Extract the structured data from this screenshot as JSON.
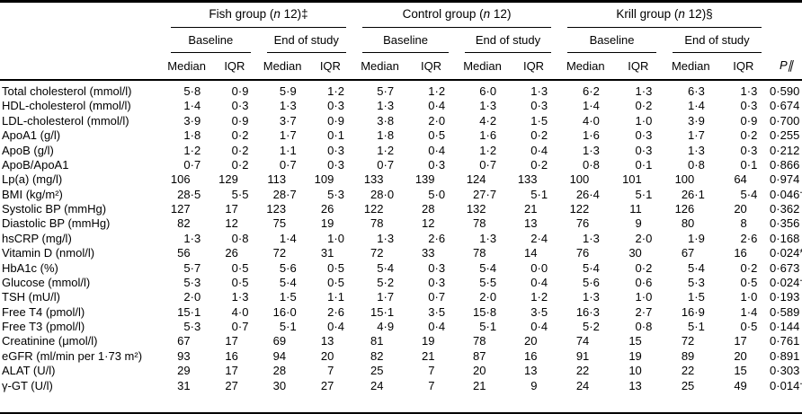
{
  "colors": {
    "background": "#ffffff",
    "text": "#000000",
    "rule": "#000000"
  },
  "table": {
    "groups": [
      {
        "label": "Fish group (n 12)‡",
        "subgroups": [
          "Baseline",
          "End of study"
        ]
      },
      {
        "label": "Control group (n 12)",
        "subgroups": [
          "Baseline",
          "End of study"
        ]
      },
      {
        "label": "Krill group (n 12)§",
        "subgroups": [
          "Baseline",
          "End of study"
        ]
      }
    ],
    "stat_headers": [
      "Median",
      "IQR"
    ],
    "p_header": "P∥",
    "rows": [
      {
        "label": "Total cholesterol (mmol/l)",
        "values": [
          "5·8",
          "0·9",
          "5·9",
          "1·2",
          "5·7",
          "1·2",
          "6·0",
          "1·3",
          "6·2",
          "1·3",
          "6·3",
          "1·3"
        ],
        "p": "0·590"
      },
      {
        "label": "HDL-cholesterol (mmol/l)",
        "values": [
          "1·4",
          "0·3",
          "1·3",
          "0·3",
          "1·3",
          "0·4",
          "1·3",
          "0·3",
          "1·4",
          "0·2",
          "1·4",
          "0·3"
        ],
        "p": "0·674"
      },
      {
        "label": "LDL-cholesterol (mmol/l)",
        "values": [
          "3·9",
          "0·9",
          "3·7",
          "0·9",
          "3·8",
          "2·0",
          "4·2",
          "1·5",
          "4·0",
          "1·0",
          "3·9",
          "0·9"
        ],
        "p": "0·700"
      },
      {
        "label": "ApoA1 (g/l)",
        "values": [
          "1·8",
          "0·2",
          "1·7",
          "0·1",
          "1·8",
          "0·5",
          "1·6",
          "0·2",
          "1·6",
          "0·3",
          "1·7",
          "0·2"
        ],
        "p": "0·255"
      },
      {
        "label": "ApoB (g/l)",
        "values": [
          "1·2",
          "0·2",
          "1·1",
          "0·3",
          "1·2",
          "0·4",
          "1·2",
          "0·4",
          "1·3",
          "0·3",
          "1·3",
          "0·3"
        ],
        "p": "0·212"
      },
      {
        "label": "ApoB/ApoA1",
        "values": [
          "0·7",
          "0·2",
          "0·7",
          "0·3",
          "0·7",
          "0·3",
          "0·7",
          "0·2",
          "0·8",
          "0·1",
          "0·8",
          "0·1"
        ],
        "p": "0·866"
      },
      {
        "label": "Lp(a) (mg/l)",
        "values": [
          "106",
          "129",
          "113",
          "109",
          "133",
          "139",
          "124",
          "133",
          "100",
          "101",
          "100",
          "64"
        ],
        "p": "0·974"
      },
      {
        "label": "BMI (kg/m²)",
        "values": [
          "28·5",
          "5·5",
          "28·7",
          "5·3",
          "28·0",
          "5·0",
          "27·7",
          "5·1",
          "26·4",
          "5·1",
          "26·1",
          "5·4"
        ],
        "p": "0·046†"
      },
      {
        "label": "Systolic BP (mmHg)",
        "values": [
          "127",
          "17",
          "123",
          "26",
          "122",
          "28",
          "132",
          "21",
          "122",
          "11",
          "126",
          "20"
        ],
        "p": "0·362"
      },
      {
        "label": "Diastolic BP (mmHg)",
        "values": [
          "82",
          "12",
          "75",
          "19",
          "78",
          "12",
          "78",
          "13",
          "76",
          "9",
          "80",
          "8"
        ],
        "p": "0·356"
      },
      {
        "label": "hsCRP (mg/l)",
        "values": [
          "1·3",
          "0·8",
          "1·4",
          "1·0",
          "1·3",
          "2·6",
          "1·3",
          "2·4",
          "1·3",
          "2·0",
          "1·9",
          "2·6"
        ],
        "p": "0·168"
      },
      {
        "label": "Vitamin D (nmol/l)",
        "values": [
          "56",
          "26",
          "72",
          "31",
          "72",
          "33",
          "78",
          "14",
          "76",
          "30",
          "67",
          "16"
        ],
        "p": "0·024*"
      },
      {
        "label": "HbA1c (%)",
        "values": [
          "5·7",
          "0·5",
          "5·6",
          "0·5",
          "5·4",
          "0·3",
          "5·4",
          "0·0",
          "5·4",
          "0·2",
          "5·4",
          "0·2"
        ],
        "p": "0·673"
      },
      {
        "label": "Glucose (mmol/l)",
        "values": [
          "5·3",
          "0·5",
          "5·4",
          "0·5",
          "5·2",
          "0·3",
          "5·5",
          "0·4",
          "5·6",
          "0·6",
          "5·3",
          "0·5"
        ],
        "p": "0·024†"
      },
      {
        "label": "TSH (mU/l)",
        "values": [
          "2·0",
          "1·3",
          "1·5",
          "1·1",
          "1·7",
          "0·7",
          "2·0",
          "1·2",
          "1·3",
          "1·0",
          "1·5",
          "1·0"
        ],
        "p": "0·193"
      },
      {
        "label": "Free T4 (pmol/l)",
        "values": [
          "15·1",
          "4·0",
          "16·0",
          "2·6",
          "15·1",
          "3·5",
          "15·8",
          "3·5",
          "16·3",
          "2·7",
          "16·9",
          "1·4"
        ],
        "p": "0·589"
      },
      {
        "label": "Free T3 (pmol/l)",
        "values": [
          "5·3",
          "0·7",
          "5·1",
          "0·4",
          "4·9",
          "0·4",
          "5·1",
          "0·4",
          "5·2",
          "0·8",
          "5·1",
          "0·5"
        ],
        "p": "0·144"
      },
      {
        "label": "Creatinine (μmol/l)",
        "values": [
          "67",
          "17",
          "69",
          "13",
          "81",
          "19",
          "78",
          "20",
          "74",
          "15",
          "72",
          "17"
        ],
        "p": "0·761"
      },
      {
        "label": "eGFR (ml/min per 1·73 m²)",
        "values": [
          "93",
          "16",
          "94",
          "20",
          "82",
          "21",
          "87",
          "16",
          "91",
          "19",
          "89",
          "20"
        ],
        "p": "0·891"
      },
      {
        "label": "ALAT (U/l)",
        "values": [
          "29",
          "17",
          "28",
          "7",
          "25",
          "7",
          "20",
          "13",
          "22",
          "10",
          "22",
          "15"
        ],
        "p": "0·303"
      },
      {
        "label": "γ-GT (U/l)",
        "values": [
          "31",
          "27",
          "30",
          "27",
          "24",
          "7",
          "21",
          "9",
          "24",
          "13",
          "25",
          "49"
        ],
        "p": "0·014†"
      }
    ]
  }
}
